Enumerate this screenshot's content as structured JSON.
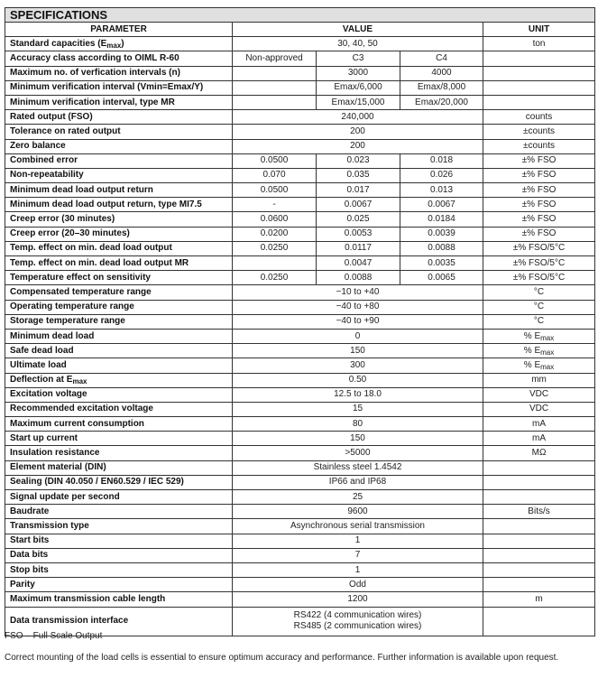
{
  "title": "SPECIFICATIONS",
  "headers": {
    "parameter": "PARAMETER",
    "value": "VALUE",
    "unit": "UNIT"
  },
  "rows": [
    {
      "label": [
        {
          "t": "Standard capacities (E"
        },
        {
          "sub": "max"
        },
        {
          "t": ")"
        }
      ],
      "value": "30, 40, 50",
      "unit": [
        {
          "t": "ton"
        }
      ]
    },
    {
      "label": [
        {
          "t": "Accuracy class according to OIML R-60"
        }
      ],
      "values": [
        "Non-approved",
        "C3",
        "C4"
      ],
      "unit": []
    },
    {
      "label": [
        {
          "t": "Maximum no. of verfication intervals (n)"
        }
      ],
      "values": [
        "",
        "3000",
        "4000"
      ],
      "unit": []
    },
    {
      "label": [
        {
          "t": "Minimum verification interval (Vmin=Emax/Y)"
        }
      ],
      "values": [
        "",
        "Emax/6,000",
        "Emax/8,000"
      ],
      "unit": []
    },
    {
      "label": [
        {
          "t": "Minimum verification interval, type MR"
        }
      ],
      "values": [
        "",
        "Emax/15,000",
        "Emax/20,000"
      ],
      "unit": []
    },
    {
      "label": [
        {
          "t": "Rated output (FSO)"
        }
      ],
      "value": "240,000",
      "unit": [
        {
          "t": "counts"
        }
      ]
    },
    {
      "label": [
        {
          "t": "Tolerance on rated output"
        }
      ],
      "value": "200",
      "unit": [
        {
          "t": "±counts"
        }
      ]
    },
    {
      "label": [
        {
          "t": "Zero balance"
        }
      ],
      "value": "200",
      "unit": [
        {
          "t": "±counts"
        }
      ]
    },
    {
      "label": [
        {
          "t": "Combined error"
        }
      ],
      "values": [
        "0.0500",
        "0.023",
        "0.018"
      ],
      "unit": [
        {
          "t": "±% FSO"
        }
      ]
    },
    {
      "label": [
        {
          "t": "Non-repeatability"
        }
      ],
      "values": [
        "0.070",
        "0.035",
        "0.026"
      ],
      "unit": [
        {
          "t": "±% FSO"
        }
      ]
    },
    {
      "label": [
        {
          "t": "Minimum dead load output return"
        }
      ],
      "values": [
        "0.0500",
        "0.017",
        "0.013"
      ],
      "unit": [
        {
          "t": "±% FSO"
        }
      ]
    },
    {
      "label": [
        {
          "t": "Minimum dead load output return, type MI7.5"
        }
      ],
      "values": [
        "-",
        "0.0067",
        "0.0067"
      ],
      "unit": [
        {
          "t": "±% FSO"
        }
      ]
    },
    {
      "label": [
        {
          "t": "Creep error (30 minutes)"
        }
      ],
      "values": [
        "0.0600",
        "0.025",
        "0.0184"
      ],
      "unit": [
        {
          "t": "±% FSO"
        }
      ]
    },
    {
      "label": [
        {
          "t": "Creep error (20–30 minutes)"
        }
      ],
      "values": [
        "0.0200",
        "0.0053",
        "0.0039"
      ],
      "unit": [
        {
          "t": "±% FSO"
        }
      ]
    },
    {
      "label": [
        {
          "t": "Temp. effect on min. dead load output"
        }
      ],
      "values": [
        "0.0250",
        "0.0117",
        "0.0088"
      ],
      "unit": [
        {
          "t": "±% FSO/5°C"
        }
      ]
    },
    {
      "label": [
        {
          "t": "Temp. effect on min. dead load output MR"
        }
      ],
      "values": [
        "",
        "0.0047",
        "0.0035"
      ],
      "unit": [
        {
          "t": "±% FSO/5°C"
        }
      ]
    },
    {
      "label": [
        {
          "t": "Temperature effect on sensitivity"
        }
      ],
      "values": [
        "0.0250",
        "0.0088",
        "0.0065"
      ],
      "unit": [
        {
          "t": "±% FSO/5°C"
        }
      ]
    },
    {
      "label": [
        {
          "t": "Compensated temperature range"
        }
      ],
      "value": "−10 to +40",
      "unit": [
        {
          "t": "°C"
        }
      ]
    },
    {
      "label": [
        {
          "t": "Operating temperature range"
        }
      ],
      "value": "−40 to +80",
      "unit": [
        {
          "t": "°C"
        }
      ]
    },
    {
      "label": [
        {
          "t": "Storage temperature range"
        }
      ],
      "value": "−40 to +90",
      "unit": [
        {
          "t": "°C"
        }
      ]
    },
    {
      "label": [
        {
          "t": "Minimum dead load"
        }
      ],
      "value": "0",
      "unit": [
        {
          "t": "% E"
        },
        {
          "sub": "max"
        }
      ]
    },
    {
      "label": [
        {
          "t": "Safe dead load"
        }
      ],
      "value": "150",
      "unit": [
        {
          "t": "% E"
        },
        {
          "sub": "max"
        }
      ]
    },
    {
      "label": [
        {
          "t": "Ultimate load"
        }
      ],
      "value": "300",
      "unit": [
        {
          "t": "% E"
        },
        {
          "sub": "max"
        }
      ]
    },
    {
      "label": [
        {
          "t": "Deflection at E"
        },
        {
          "sub": "max"
        }
      ],
      "value": "0.50",
      "unit": [
        {
          "t": "mm"
        }
      ]
    },
    {
      "label": [
        {
          "t": "Excitation voltage"
        }
      ],
      "value": "12.5 to 18.0",
      "unit": [
        {
          "t": "VDC"
        }
      ]
    },
    {
      "label": [
        {
          "t": "Recommended excitation voltage"
        }
      ],
      "value": "15",
      "unit": [
        {
          "t": "VDC"
        }
      ]
    },
    {
      "label": [
        {
          "t": "Maximum current consumption"
        }
      ],
      "value": "80",
      "unit": [
        {
          "t": "mA"
        }
      ]
    },
    {
      "label": [
        {
          "t": "Start up current"
        }
      ],
      "value": "150",
      "unit": [
        {
          "t": "mA"
        }
      ]
    },
    {
      "label": [
        {
          "t": "Insulation resistance"
        }
      ],
      "value": ">5000",
      "unit": [
        {
          "t": "MΩ"
        }
      ]
    },
    {
      "label": [
        {
          "t": "Element material (DIN)"
        }
      ],
      "value": "Stainless steel 1.4542",
      "unit": []
    },
    {
      "label": [
        {
          "t": "Sealing (DIN 40.050 / EN60.529 / IEC 529)"
        }
      ],
      "value": "IP66 and IP68",
      "unit": []
    },
    {
      "label": [
        {
          "t": "Signal update per second"
        }
      ],
      "value": "25",
      "unit": []
    },
    {
      "label": [
        {
          "t": "Baudrate"
        }
      ],
      "value": "9600",
      "unit": [
        {
          "t": "Bits/s"
        }
      ]
    },
    {
      "label": [
        {
          "t": "Transmission type"
        }
      ],
      "value": "Asynchronous serial transmission",
      "unit": []
    },
    {
      "label": [
        {
          "t": "Start bits"
        }
      ],
      "value": "1",
      "unit": []
    },
    {
      "label": [
        {
          "t": "Data bits"
        }
      ],
      "value": "7",
      "unit": []
    },
    {
      "label": [
        {
          "t": "Stop bits"
        }
      ],
      "value": "1",
      "unit": []
    },
    {
      "label": [
        {
          "t": "Parity"
        }
      ],
      "value": "Odd",
      "unit": []
    },
    {
      "label": [
        {
          "t": "Maximum transmission cable length"
        }
      ],
      "value": "1200",
      "unit": [
        {
          "t": "m"
        }
      ]
    },
    {
      "label": [
        {
          "t": "Data transmission interface"
        }
      ],
      "lines": [
        "RS422 (4 communication wires)",
        "RS485 (2 communication wires)"
      ],
      "unit": []
    }
  ],
  "footnote": "FSO – Full Scale Output",
  "note": "Correct mounting of the load cells is essential to ensure optimum accuracy and performance. Further information is available upon request."
}
